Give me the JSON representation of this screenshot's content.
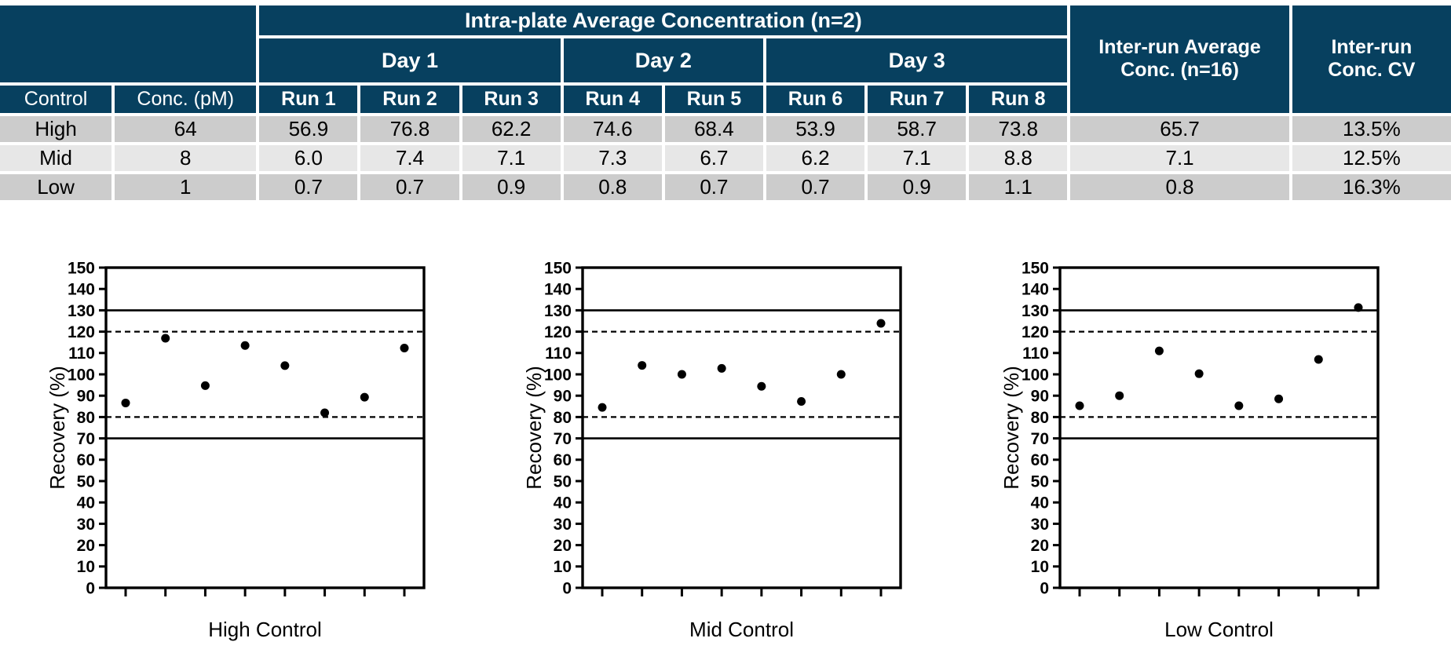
{
  "table": {
    "title": "Intra-plate Average Concentration (n=2)",
    "day_groups": [
      {
        "label": "Day 1",
        "span": 3
      },
      {
        "label": "Day 2",
        "span": 2
      },
      {
        "label": "Day 3",
        "span": 3
      }
    ],
    "control_header": "Control",
    "conc_header": "Conc. (pM)",
    "run_headers": [
      "Run 1",
      "Run 2",
      "Run 3",
      "Run 4",
      "Run 5",
      "Run 6",
      "Run 7",
      "Run 8"
    ],
    "inter_run_avg_header": "Inter-run Average Conc. (n=16)",
    "inter_run_cv_header": "Inter-run Conc. CV",
    "rows": [
      {
        "control": "High",
        "conc": "64",
        "runs": [
          "56.9",
          "76.8",
          "62.2",
          "74.6",
          "68.4",
          "53.9",
          "58.7",
          "73.8"
        ],
        "avg": "65.7",
        "cv": "13.5%"
      },
      {
        "control": "Mid",
        "conc": "8",
        "runs": [
          "6.0",
          "7.4",
          "7.1",
          "7.3",
          "6.7",
          "6.2",
          "7.1",
          "8.8"
        ],
        "avg": "7.1",
        "cv": "12.5%"
      },
      {
        "control": "Low",
        "conc": "1",
        "runs": [
          "0.7",
          "0.7",
          "0.9",
          "0.8",
          "0.7",
          "0.7",
          "0.9",
          "1.1"
        ],
        "avg": "0.8",
        "cv": "16.3%"
      }
    ]
  },
  "colors": {
    "header_navy": "#07405F",
    "row_gray": "#CCCCCC",
    "row_light_gray": "#E7E7E7",
    "point_color": "#000000"
  },
  "chart_data": [
    {
      "type": "scatter",
      "title": "High Control",
      "ylabel": "Recovery (%)",
      "ylim": [
        0,
        150
      ],
      "ytick_step": 10,
      "x": [
        1,
        2,
        3,
        4,
        5,
        6,
        7,
        8
      ],
      "values": [
        86.6,
        116.9,
        94.7,
        113.5,
        104.1,
        82.0,
        89.3,
        112.3
      ],
      "ref_lines_solid": [
        70,
        130
      ],
      "ref_lines_dashed": [
        80,
        120
      ],
      "grid": false,
      "legend": false
    },
    {
      "type": "scatter",
      "title": "Mid Control",
      "ylabel": "Recovery (%)",
      "ylim": [
        0,
        150
      ],
      "ytick_step": 10,
      "x": [
        1,
        2,
        3,
        4,
        5,
        6,
        7,
        8
      ],
      "values": [
        84.5,
        104.2,
        100.0,
        102.8,
        94.4,
        87.3,
        100.0,
        123.9
      ],
      "ref_lines_solid": [
        70,
        130
      ],
      "ref_lines_dashed": [
        80,
        120
      ],
      "grid": false,
      "legend": false
    },
    {
      "type": "scatter",
      "title": "Low Control",
      "ylabel": "Recovery (%)",
      "ylim": [
        0,
        150
      ],
      "ytick_step": 10,
      "x": [
        1,
        2,
        3,
        4,
        5,
        6,
        7,
        8
      ],
      "values": [
        85.3,
        90.0,
        111.0,
        100.3,
        85.3,
        88.5,
        107.0,
        131.3
      ],
      "ref_lines_solid": [
        70,
        130
      ],
      "ref_lines_dashed": [
        80,
        120
      ],
      "grid": false,
      "legend": false
    }
  ]
}
